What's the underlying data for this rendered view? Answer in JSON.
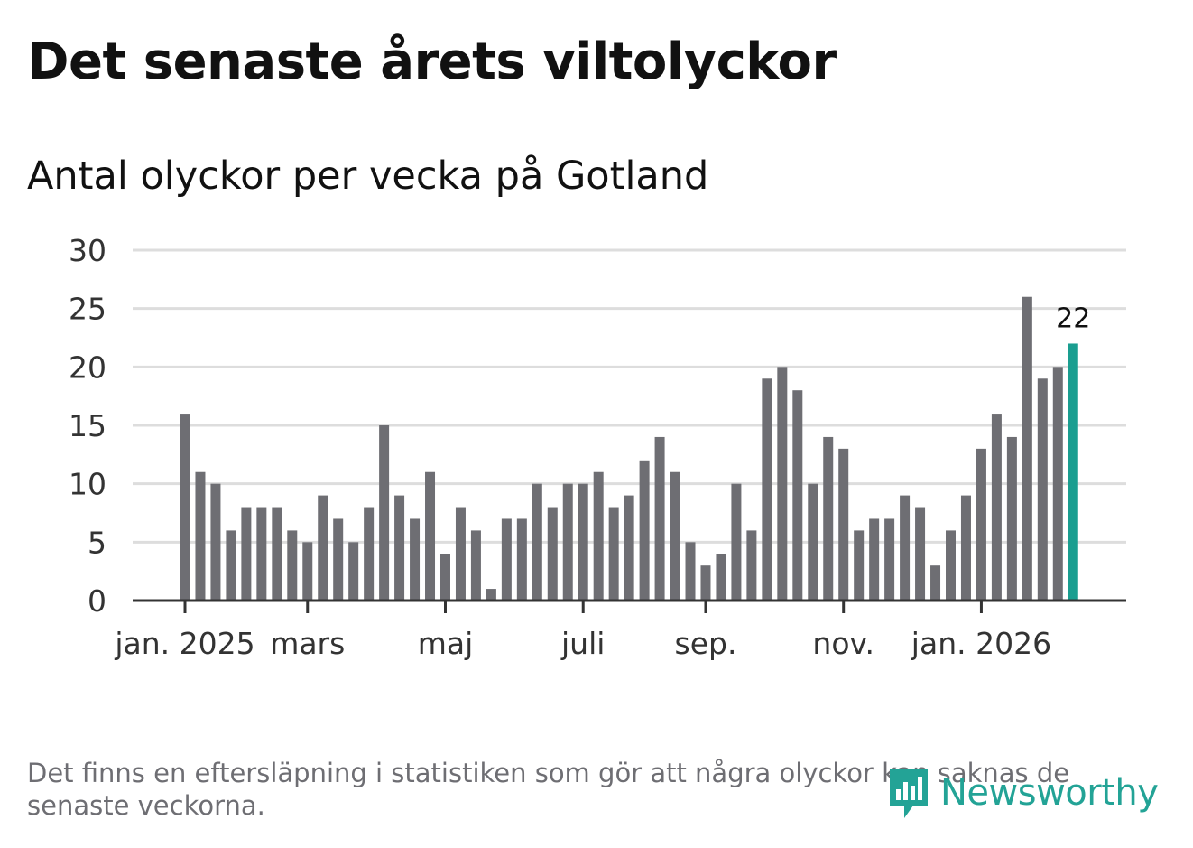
{
  "title": "Det senaste årets viltolyckor",
  "subtitle": "Antal olyckor per vecka på Gotland",
  "footnote": "Det finns en eftersläpning i statistiken som gör att några olyckor kan saknas de senaste veckorna.",
  "brand": {
    "name": "Newsworthy",
    "color": "#23a396",
    "icon": "bar-chart-speech-bubble-icon"
  },
  "colors": {
    "bar": "#6e6e73",
    "highlight": "#1a9e90",
    "grid": "#dddddd",
    "axis": "#333333",
    "text": "#111111"
  },
  "chart_data": {
    "type": "bar",
    "title": "Det senaste årets viltolyckor",
    "subtitle": "Antal olyckor per vecka på Gotland",
    "xlabel": "",
    "ylabel": "",
    "ylim": [
      0,
      30
    ],
    "yticks": [
      0,
      5,
      10,
      15,
      20,
      25,
      30
    ],
    "grid": true,
    "values": [
      16,
      11,
      10,
      6,
      8,
      8,
      8,
      6,
      5,
      9,
      7,
      5,
      8,
      15,
      9,
      7,
      11,
      4,
      8,
      6,
      1,
      7,
      7,
      10,
      8,
      10,
      10,
      11,
      8,
      9,
      12,
      14,
      11,
      5,
      3,
      4,
      10,
      6,
      19,
      20,
      18,
      10,
      14,
      13,
      6,
      7,
      7,
      9,
      8,
      3,
      6,
      9,
      13,
      16,
      14,
      26,
      19,
      20,
      22
    ],
    "xticks": [
      {
        "label": "jan. 2025",
        "index": 0
      },
      {
        "label": "mars",
        "index": 8
      },
      {
        "label": "maj",
        "index": 17
      },
      {
        "label": "juli",
        "index": 26
      },
      {
        "label": "sep.",
        "index": 34
      },
      {
        "label": "nov.",
        "index": 43
      },
      {
        "label": "jan. 2026",
        "index": 52
      }
    ],
    "highlight_index": 58,
    "highlight_label": "22"
  }
}
